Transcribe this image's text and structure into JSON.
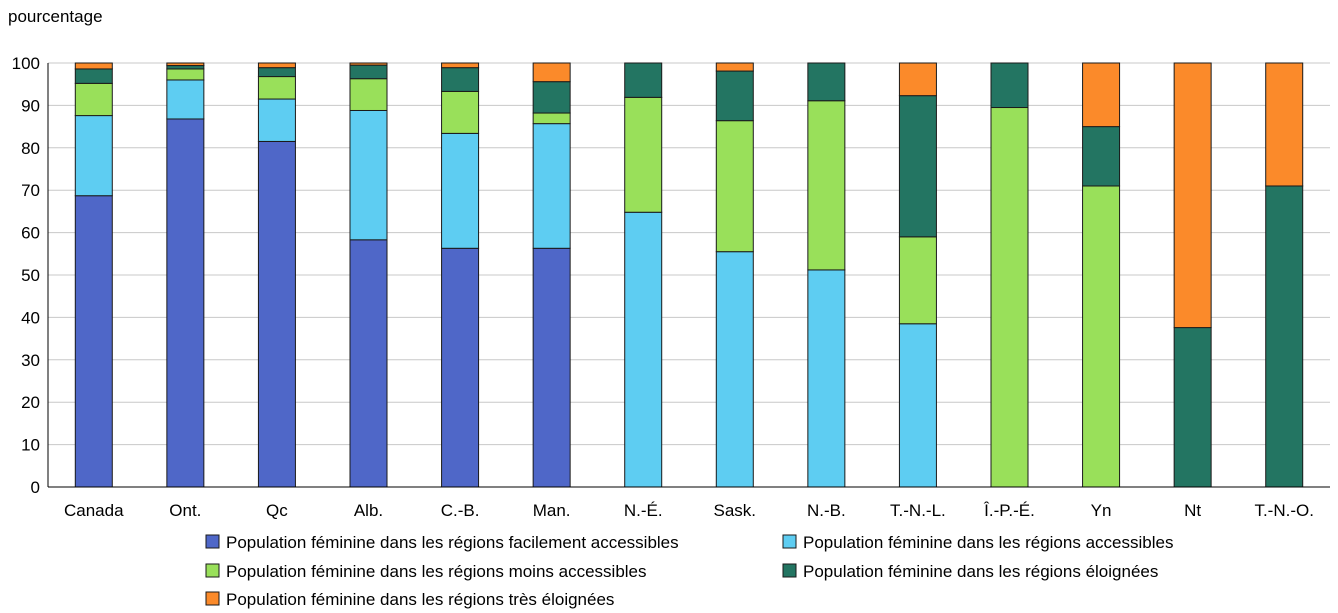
{
  "chart_data": {
    "type": "bar",
    "stacked": true,
    "title": "",
    "xlabel": "",
    "ylabel": "pourcentage",
    "ylim": [
      0,
      100
    ],
    "yticks": [
      0,
      10,
      20,
      30,
      40,
      50,
      60,
      70,
      80,
      90,
      100
    ],
    "grid": "horizontal",
    "legend_position": "bottom",
    "categories": [
      "Canada",
      "Ont.",
      "Qc",
      "Alb.",
      "C.-B.",
      "Man.",
      "N.-É.",
      "Sask.",
      "N.-B.",
      "T.-N.-L.",
      "Î.-P.-É.",
      "Yn",
      "Nt",
      "T.-N.-O."
    ],
    "series": [
      {
        "name": "Population féminine dans les régions facilement accessibles",
        "color": "#4f67c8",
        "values": [
          68.7,
          86.8,
          81.5,
          58.3,
          56.3,
          56.3,
          0,
          0,
          0,
          0,
          0,
          0,
          0,
          0
        ]
      },
      {
        "name": "Population féminine dans les régions accessibles",
        "color": "#5ecdf2",
        "values": [
          18.9,
          9.2,
          10.0,
          30.5,
          27.1,
          29.4,
          64.8,
          55.5,
          51.2,
          38.5,
          0,
          0,
          0,
          0
        ]
      },
      {
        "name": "Population féminine dans les régions moins accessibles",
        "color": "#99e05a",
        "values": [
          7.6,
          2.6,
          5.3,
          7.5,
          9.9,
          2.5,
          27.1,
          30.9,
          39.9,
          20.5,
          89.5,
          71.0,
          0,
          0
        ]
      },
      {
        "name": "Population féminine dans les régions éloignées",
        "color": "#237562",
        "values": [
          3.4,
          0.8,
          2.1,
          3.2,
          5.6,
          7.4,
          8.1,
          11.7,
          8.9,
          33.3,
          10.5,
          14.0,
          37.6,
          71.0
        ]
      },
      {
        "name": "Population féminine dans les régions très éloignées",
        "color": "#fb8a2a",
        "values": [
          1.4,
          0.6,
          1.1,
          0.5,
          1.1,
          4.4,
          0,
          1.9,
          0,
          7.7,
          0,
          15.0,
          62.4,
          29.0
        ]
      }
    ]
  }
}
